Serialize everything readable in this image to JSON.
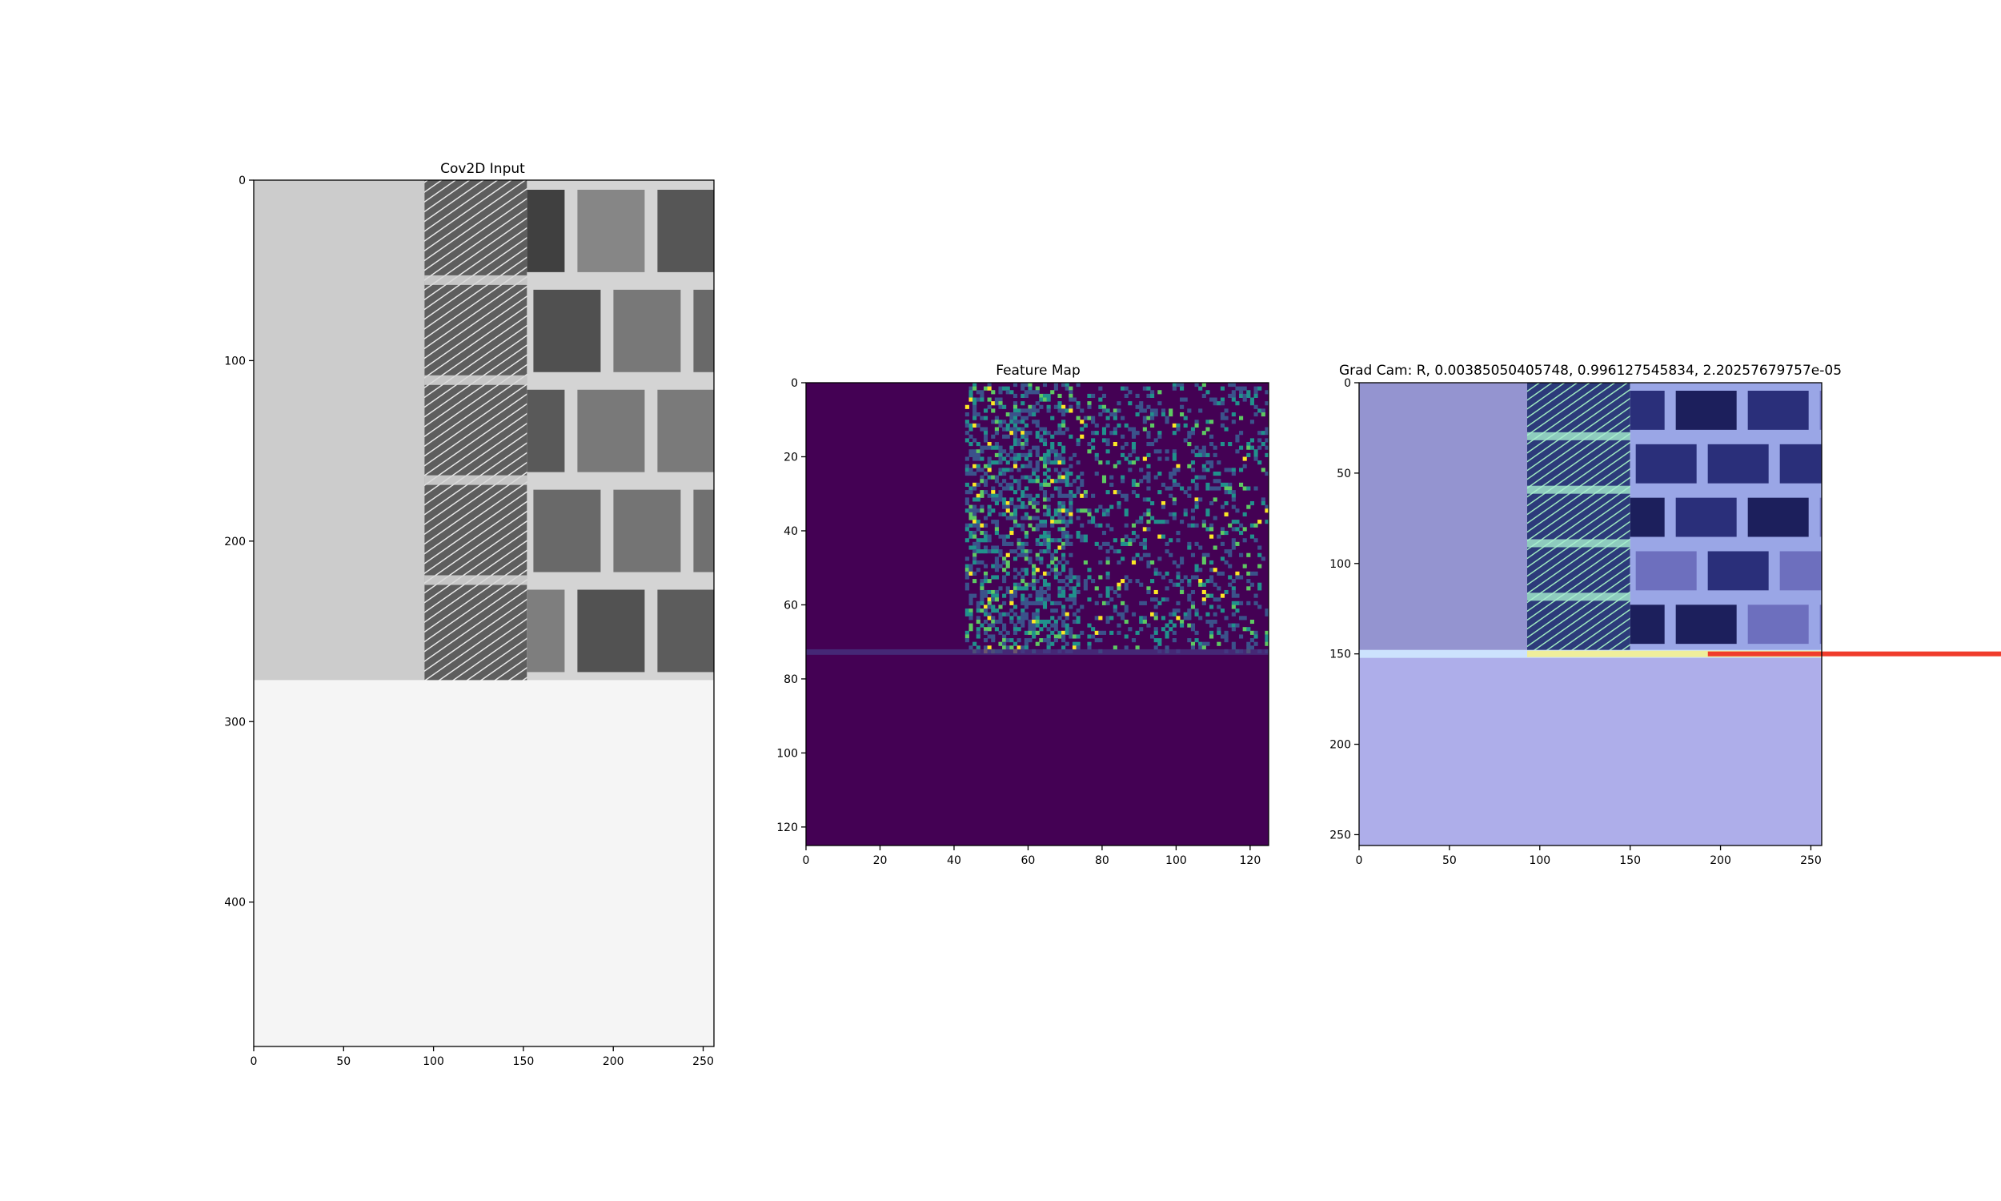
{
  "chart_data": [
    {
      "type": "heatmap",
      "title": "Cov2D Input",
      "xlim": [
        0,
        256
      ],
      "ylim": [
        480,
        0
      ],
      "xticks": [
        "0",
        "50",
        "100",
        "150",
        "200",
        "250"
      ],
      "yticks": [
        "0",
        "100",
        "200",
        "300",
        "400"
      ],
      "colormap": "gray",
      "content": {
        "filled_region_rows": [
          0,
          277
        ],
        "plain_region_cols": [
          0,
          95
        ],
        "hatched_region_cols": [
          95,
          152
        ],
        "brick_region_cols": [
          152,
          256
        ],
        "plain_region_level": 0.8,
        "blank_region_level": 0.96
      }
    },
    {
      "type": "heatmap",
      "title": "Feature Map",
      "xlim": [
        0,
        125
      ],
      "ylim": [
        125,
        0
      ],
      "xticks": [
        "0",
        "20",
        "40",
        "60",
        "80",
        "100",
        "120"
      ],
      "yticks": [
        "0",
        "20",
        "40",
        "60",
        "80",
        "100",
        "120"
      ],
      "colormap": "viridis",
      "content": {
        "active_rows": [
          0,
          73
        ],
        "active_cols": [
          43,
          125
        ],
        "dense_cols": [
          43,
          72
        ],
        "background_color": "#440154"
      }
    },
    {
      "type": "heatmap",
      "title": "Grad Cam: R, 0.00385050405748, 0.996127545834, 2.20257679757e-05",
      "xlim": [
        0,
        256
      ],
      "ylim": [
        256,
        0
      ],
      "xticks": [
        "0",
        "50",
        "100",
        "150",
        "200",
        "250"
      ],
      "yticks": [
        "0",
        "50",
        "100",
        "150",
        "200",
        "250"
      ],
      "colormap": "jet overlay",
      "content": {
        "filled_region_rows": [
          0,
          148
        ],
        "plain_region_cols": [
          0,
          93
        ],
        "hatched_region_cols": [
          93,
          150
        ],
        "brick_region_cols": [
          150,
          256
        ],
        "hot_row": 150,
        "overlay_color": "#aeaeea"
      }
    }
  ]
}
